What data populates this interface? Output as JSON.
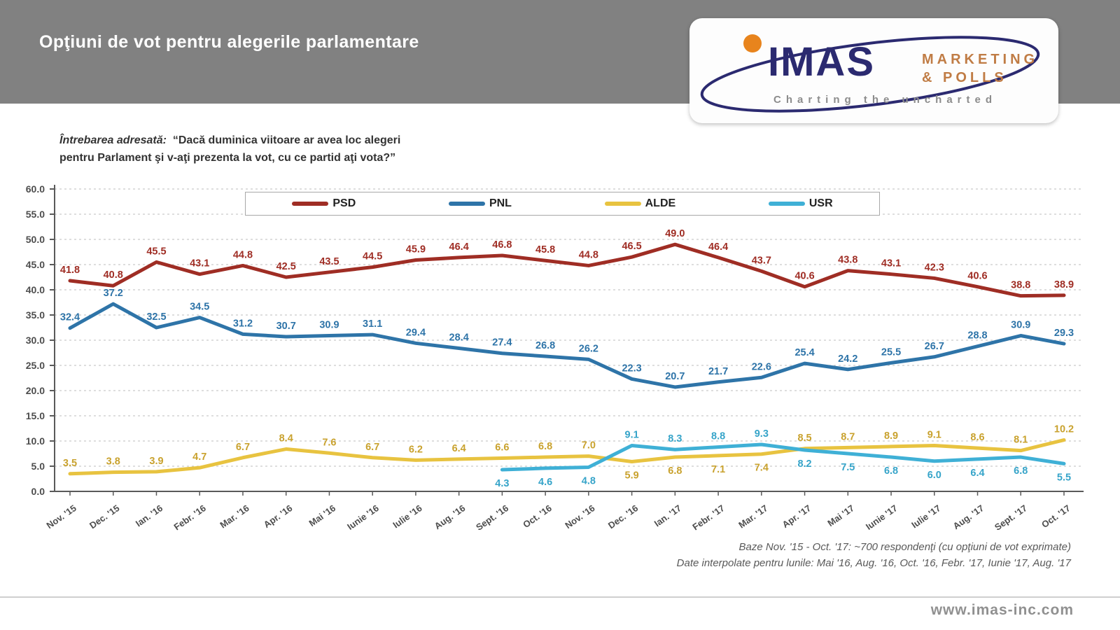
{
  "header": {
    "title": "Opţiuni de vot pentru alegerile parlamentare"
  },
  "logo": {
    "name": "IMAS",
    "marketing": "MARKETING",
    "polls": "& POLLS",
    "tagline": "Charting the uncharted",
    "navy": "#2b2a70",
    "orange": "#e8841d"
  },
  "question": {
    "lead": "Întrebarea  adresată:",
    "line1": "“Dacă duminica viitoare ar avea loc alegeri",
    "line2": "pentru Parlament şi v-aţi prezenta la vot, cu ce partid aţi vota?”"
  },
  "chart_data": {
    "type": "line",
    "title": "Opţiuni de vot pentru alegerile parlamentare",
    "xlabel": "",
    "ylabel": "",
    "ylim": [
      0,
      60
    ],
    "ytick_step": 5,
    "grid": true,
    "legend_position": "top",
    "x": [
      "Nov. '15",
      "Dec. '15",
      "Ian. '16",
      "Febr. '16",
      "Mar. '16",
      "Apr. '16",
      "Mai '16",
      "Iunie '16",
      "Iulie '16",
      "Aug. '16",
      "Sept. '16",
      "Oct. '16",
      "Nov. '16",
      "Dec. '16",
      "Ian. '17",
      "Febr. '17",
      "Mar. '17",
      "Apr. '17",
      "Mai '17",
      "Iunie '17",
      "Iulie '17",
      "Aug. '17",
      "Sept. '17",
      "Oct. '17"
    ],
    "series": [
      {
        "name": "PSD",
        "color": "#9f2d24",
        "values": [
          41.8,
          40.8,
          45.5,
          43.1,
          44.8,
          42.5,
          43.5,
          44.5,
          45.9,
          46.4,
          46.8,
          45.8,
          44.8,
          46.5,
          49.0,
          46.4,
          43.7,
          40.6,
          43.8,
          43.1,
          42.3,
          40.6,
          38.8,
          38.9
        ]
      },
      {
        "name": "PNL",
        "color": "#2e74a8",
        "values": [
          32.4,
          37.2,
          32.5,
          34.5,
          31.2,
          30.7,
          30.9,
          31.1,
          29.4,
          28.4,
          27.4,
          26.8,
          26.2,
          22.3,
          20.7,
          21.7,
          22.6,
          25.4,
          24.2,
          25.5,
          26.7,
          28.8,
          30.9,
          29.3
        ]
      },
      {
        "name": "ALDE",
        "color": "#e8c340",
        "values": [
          3.5,
          3.8,
          3.9,
          4.7,
          6.7,
          8.4,
          7.6,
          6.7,
          6.2,
          6.4,
          6.6,
          6.8,
          7.0,
          5.9,
          6.8,
          7.1,
          7.4,
          8.5,
          8.7,
          8.9,
          9.1,
          8.6,
          8.1,
          10.2
        ]
      },
      {
        "name": "USR",
        "color": "#3fb0d6",
        "values": [
          null,
          null,
          null,
          null,
          null,
          null,
          null,
          null,
          null,
          null,
          4.3,
          4.6,
          4.8,
          9.1,
          8.3,
          8.8,
          9.3,
          8.2,
          7.5,
          6.8,
          6.0,
          6.4,
          6.8,
          5.5
        ]
      }
    ]
  },
  "footnotes": {
    "line1": "Baze Nov. '15 - Oct.  '17: ~700 respondenţi (cu opţiuni de vot exprimate)",
    "line2": "Date interpolate pentru lunile: Mai '16, Aug. '16, Oct. '16, Febr. '17, Iunie '17, Aug. '17"
  },
  "footer": {
    "website": "www.imas-inc.com"
  }
}
